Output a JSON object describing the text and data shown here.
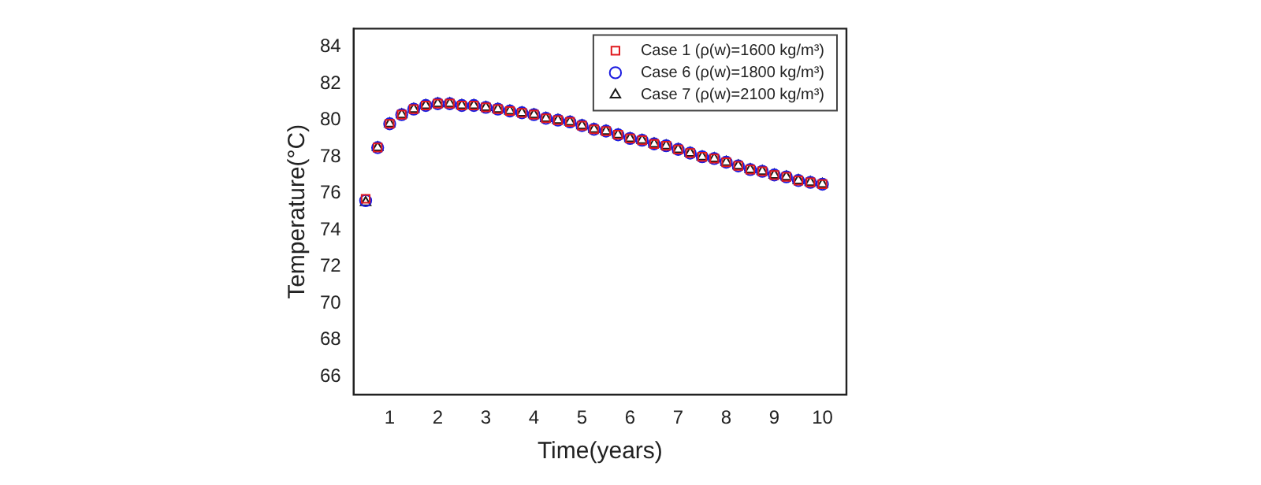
{
  "chart_data": {
    "type": "scatter",
    "xlabel": "Time(years)",
    "ylabel": "Temperature(°C)",
    "x": [
      0.5,
      0.75,
      1,
      1.25,
      1.5,
      1.75,
      2,
      2.25,
      2.5,
      2.75,
      3,
      3.25,
      3.5,
      3.75,
      4,
      4.25,
      4.5,
      4.75,
      5,
      5.25,
      5.5,
      5.75,
      6,
      6.25,
      6.5,
      6.75,
      7,
      7.25,
      7.5,
      7.75,
      8,
      8.25,
      8.5,
      8.75,
      9,
      9.25,
      9.5,
      9.75,
      10
    ],
    "series": [
      {
        "name": "Case 1 (ρ(w)=1600 kg/m³)",
        "color": "#e0191e",
        "marker": "square",
        "values": [
          75.7,
          78.5,
          79.8,
          80.3,
          80.6,
          80.8,
          80.9,
          80.9,
          80.8,
          80.8,
          80.7,
          80.6,
          80.5,
          80.4,
          80.3,
          80.1,
          80.0,
          79.9,
          79.7,
          79.5,
          79.4,
          79.2,
          79.0,
          78.9,
          78.7,
          78.6,
          78.4,
          78.2,
          78.0,
          77.9,
          77.7,
          77.5,
          77.3,
          77.2,
          77.0,
          76.9,
          76.7,
          76.6,
          76.5
        ]
      },
      {
        "name": "Case 6 (ρ(w)=1800 kg/m³)",
        "color": "#1c1ce0",
        "marker": "circle",
        "values": [
          75.6,
          78.5,
          79.8,
          80.3,
          80.6,
          80.8,
          80.9,
          80.9,
          80.8,
          80.8,
          80.7,
          80.6,
          80.5,
          80.4,
          80.3,
          80.1,
          80.0,
          79.9,
          79.7,
          79.5,
          79.4,
          79.2,
          79.0,
          78.9,
          78.7,
          78.6,
          78.4,
          78.2,
          78.0,
          77.9,
          77.7,
          77.5,
          77.3,
          77.2,
          77.0,
          76.9,
          76.7,
          76.6,
          76.5
        ]
      },
      {
        "name": "Case 7 (ρ(w)=2100 kg/m³)",
        "color": "#1a1a1a",
        "marker": "triangle",
        "values": [
          75.5,
          78.5,
          79.8,
          80.3,
          80.6,
          80.8,
          80.9,
          80.9,
          80.8,
          80.8,
          80.7,
          80.6,
          80.5,
          80.4,
          80.3,
          80.1,
          80.0,
          79.9,
          79.7,
          79.5,
          79.4,
          79.2,
          79.0,
          78.9,
          78.7,
          78.6,
          78.4,
          78.2,
          78.0,
          77.9,
          77.7,
          77.5,
          77.3,
          77.2,
          77.0,
          76.9,
          76.7,
          76.6,
          76.5
        ]
      }
    ],
    "xlim": [
      0.25,
      10.5
    ],
    "xticks": [
      1,
      2,
      3,
      4,
      5,
      6,
      7,
      8,
      9,
      10
    ],
    "ylim": [
      65,
      85
    ],
    "yticks": [
      66,
      68,
      70,
      72,
      74,
      76,
      78,
      80,
      82,
      84
    ],
    "grid": false,
    "legend": "top right"
  }
}
